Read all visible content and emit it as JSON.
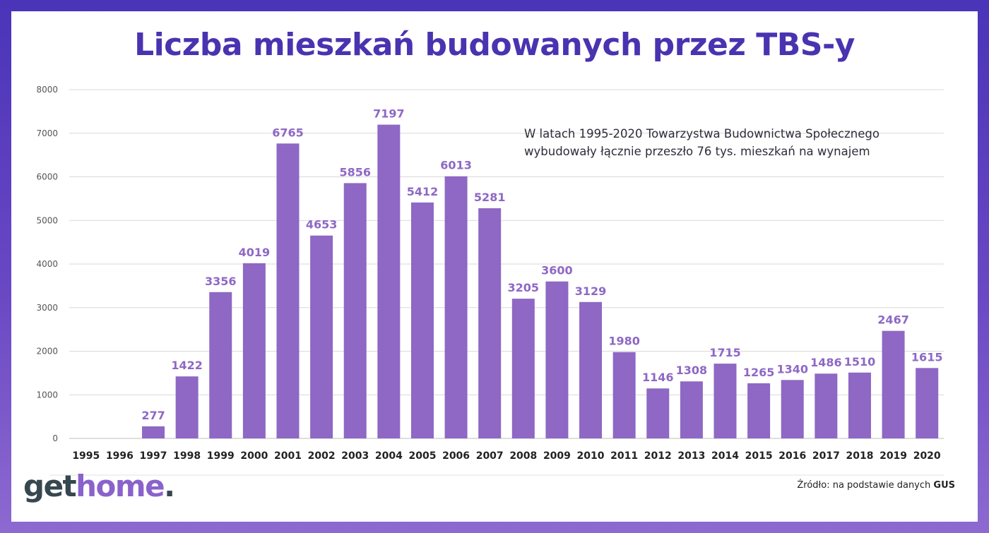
{
  "chart_data": {
    "type": "bar",
    "title": "Liczba mieszkań budowanych przez TBS-y",
    "categories": [
      "1995",
      "1996",
      "1997",
      "1998",
      "1999",
      "2000",
      "2001",
      "2002",
      "2003",
      "2004",
      "2005",
      "2006",
      "2007",
      "2008",
      "2009",
      "2010",
      "2011",
      "2012",
      "2013",
      "2014",
      "2015",
      "2016",
      "2017",
      "2018",
      "2019",
      "2020"
    ],
    "values": [
      0,
      0,
      277,
      1422,
      3356,
      4019,
      6765,
      4653,
      5856,
      7197,
      5412,
      6013,
      5281,
      3205,
      3600,
      3129,
      1980,
      1146,
      1308,
      1715,
      1265,
      1340,
      1486,
      1510,
      2467,
      1615
    ],
    "data_labels": [
      "",
      "",
      "277",
      "1422",
      "3356",
      "4019",
      "6765",
      "4653",
      "5856",
      "7197",
      "5412",
      "6013",
      "5281",
      "3205",
      "3600",
      "3129",
      "1980",
      "1146",
      "1308",
      "1715",
      "1265",
      "1340",
      "1486",
      "1510",
      "2467",
      "1615"
    ],
    "yticks": [
      0,
      1000,
      2000,
      3000,
      4000,
      5000,
      6000,
      7000,
      8000
    ],
    "ylim": [
      0,
      8000
    ],
    "xlabel": "",
    "ylabel": "",
    "grid": true,
    "legend": "none",
    "bar_color": "#8e68c4",
    "label_color": "#8e68c4",
    "annotation_lines": [
      "W latach 1995-2020 Towarzystwa Budownictwa Społecznego",
      "wybudowały łącznie przeszło 76 tys. mieszkań na wynajem"
    ]
  },
  "branding": {
    "logo_get": "get",
    "logo_home": "home",
    "logo_dot": ".",
    "source_prefix": "Źródło: na podstawie danych ",
    "source_name": "GUS"
  }
}
